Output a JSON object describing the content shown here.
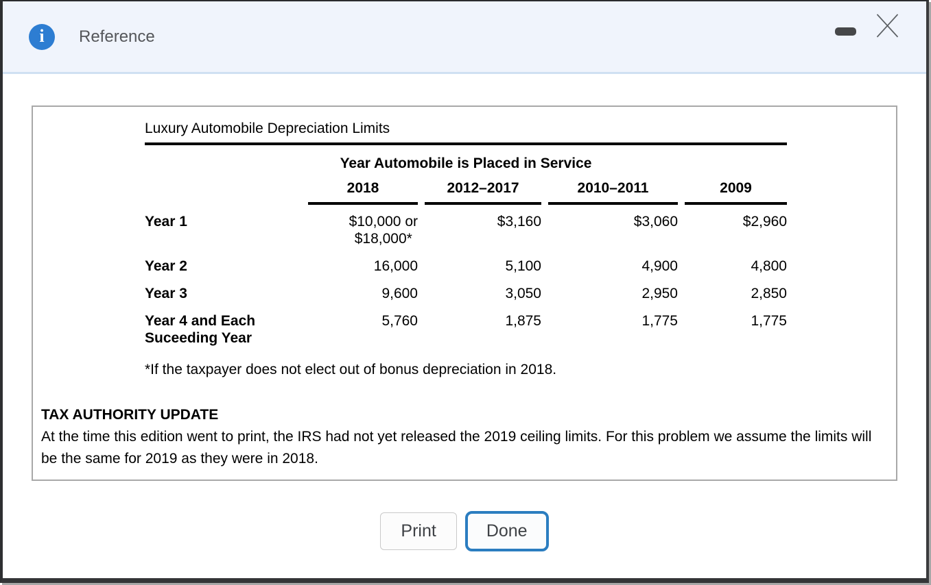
{
  "titlebar": {
    "title": "Reference",
    "info_glyph": "i"
  },
  "reference_card": {
    "table": {
      "title": "Luxury Automobile Depreciation Limits",
      "span_header": "Year Automobile is Placed in Service",
      "columns": [
        "2018",
        "2012–2017",
        "2010–2011",
        "2009"
      ],
      "rows": [
        {
          "label": "Year 1",
          "values": [
            "$10,000 or\n$18,000*",
            "$3,160",
            "$3,060",
            "$2,960"
          ]
        },
        {
          "label": "Year 2",
          "values": [
            "16,000",
            "5,100",
            "4,900",
            "4,800"
          ]
        },
        {
          "label": "Year 3",
          "values": [
            "9,600",
            "3,050",
            "2,950",
            "2,850"
          ]
        },
        {
          "label": "Year 4 and Each\nSuceeding Year",
          "values": [
            "5,760",
            "1,875",
            "1,775",
            "1,775"
          ]
        }
      ],
      "footnote": "*If the taxpayer does not elect out of bonus depreciation in 2018."
    },
    "update": {
      "heading": "TAX AUTHORITY UPDATE",
      "body": "At the time this edition went to print, the IRS had not yet released the 2019 ceiling limits. For this problem we assume the limits will be the same for 2019 as they were in 2018."
    }
  },
  "buttons": {
    "print": "Print",
    "done": "Done"
  },
  "colors": {
    "accent_blue": "#2d7dd2",
    "done_border": "#2b7dc0",
    "titlebar_bg": "#f0f4fc",
    "titlebar_border": "#cfe0f2"
  }
}
